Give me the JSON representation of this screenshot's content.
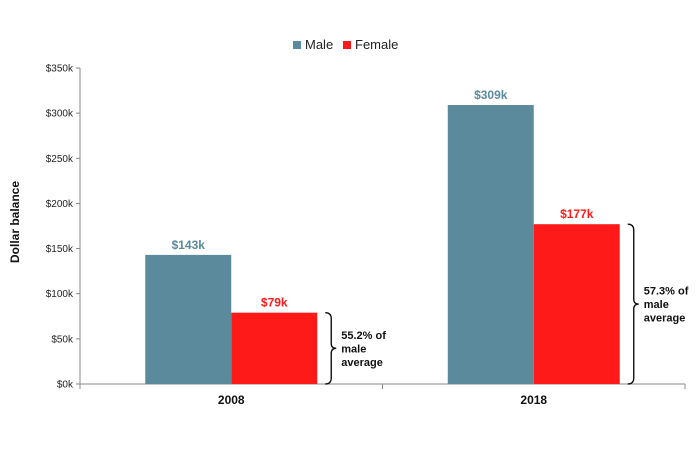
{
  "chart_data": {
    "type": "bar",
    "categories": [
      "2008",
      "2018"
    ],
    "series": [
      {
        "name": "Male",
        "values": [
          143,
          309
        ],
        "labels": [
          "$143k",
          "$309k"
        ]
      },
      {
        "name": "Female",
        "values": [
          79,
          177
        ],
        "labels": [
          "$79k",
          "$177k"
        ]
      }
    ],
    "ylabel": "Dollar balance",
    "ylim": [
      0,
      350
    ],
    "yticks": [
      0,
      50,
      100,
      150,
      200,
      250,
      300,
      350
    ],
    "ytick_labels": [
      "$0k",
      "$50k",
      "$100k",
      "$150k",
      "$200k",
      "$250k",
      "$300k",
      "$350k"
    ],
    "legend_position": "top-center",
    "grid": false,
    "colors": {
      "Male": "#5B8A9D",
      "Female": "#FF1A1A"
    },
    "annotations": [
      {
        "category": "2008",
        "lines": [
          "55.2% of",
          "male",
          "average"
        ]
      },
      {
        "category": "2018",
        "lines": [
          "57.3% of",
          "male",
          "average"
        ]
      }
    ]
  }
}
